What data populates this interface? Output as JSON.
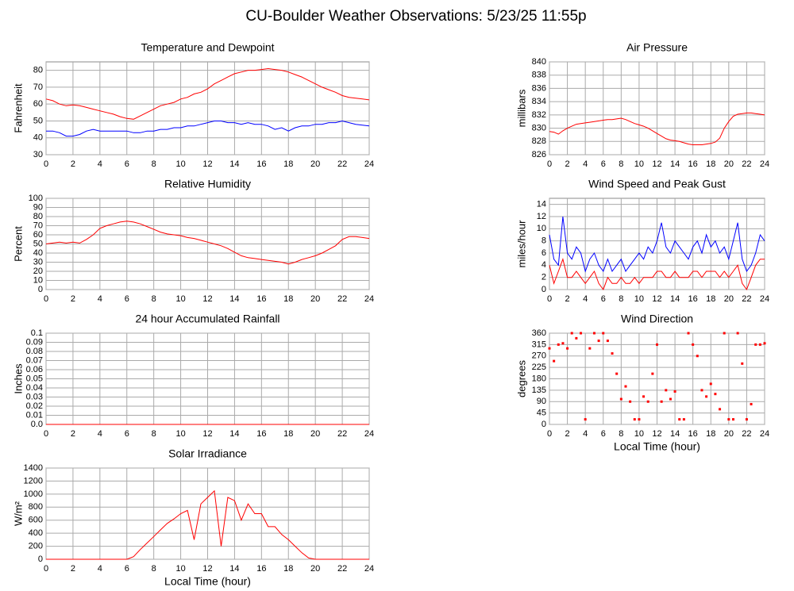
{
  "title": "CU-Boulder Weather Observations: 5/23/25 11:55p",
  "chart_data": [
    {
      "type": "line",
      "title": "Temperature and Dewpoint",
      "y_label": "Fahrenheit",
      "x": [
        0,
        0.5,
        1,
        1.5,
        2,
        2.5,
        3,
        3.5,
        4,
        4.5,
        5,
        5.5,
        6,
        6.5,
        7,
        7.5,
        8,
        8.5,
        9,
        9.5,
        10,
        10.5,
        11,
        11.5,
        12,
        12.5,
        13,
        13.5,
        14,
        14.5,
        15,
        15.5,
        16,
        16.5,
        17,
        17.5,
        18,
        18.5,
        19,
        19.5,
        20,
        20.5,
        21,
        21.5,
        22,
        22.5,
        23,
        23.5,
        24
      ],
      "series": [
        {
          "color": "#ff0000",
          "values": [
            63,
            62,
            60,
            59,
            59.5,
            59,
            58,
            57,
            56,
            55,
            54,
            52.5,
            51.5,
            51,
            53,
            55,
            57,
            59,
            60,
            61,
            63,
            64,
            66,
            67,
            69,
            72,
            74,
            76,
            78,
            79,
            80,
            80,
            80.5,
            81,
            80.5,
            80,
            79,
            77.5,
            76,
            74,
            72,
            70,
            68.5,
            67,
            65,
            64,
            63.5,
            63,
            62.5
          ]
        },
        {
          "color": "#0000ff",
          "values": [
            44,
            44,
            43,
            41,
            41,
            42,
            44,
            45,
            44,
            44,
            44,
            44,
            44,
            43,
            43,
            44,
            44,
            45,
            45,
            46,
            46,
            47,
            47,
            48,
            49,
            50,
            50,
            49,
            49,
            48,
            49,
            48,
            48,
            47,
            45,
            46,
            44,
            46,
            47,
            47,
            48,
            48,
            49,
            49,
            50,
            49,
            48,
            47.5,
            47
          ]
        }
      ],
      "xlim": [
        0,
        24
      ],
      "xticks": [
        0,
        2,
        4,
        6,
        8,
        10,
        12,
        14,
        16,
        18,
        20,
        22,
        24
      ],
      "ylim": [
        30,
        85
      ],
      "yticks": [
        30,
        40,
        50,
        60,
        70,
        80
      ],
      "grid": true
    },
    {
      "type": "line",
      "title": "Air Pressure",
      "y_label": "millibars",
      "x": [
        0,
        0.5,
        1,
        1.5,
        2,
        2.5,
        3,
        3.5,
        4,
        4.5,
        5,
        5.5,
        6,
        6.5,
        7,
        7.5,
        8,
        8.5,
        9,
        9.5,
        10,
        10.5,
        11,
        11.5,
        12,
        12.5,
        13,
        13.5,
        14,
        14.5,
        15,
        15.5,
        16,
        16.5,
        17,
        17.5,
        18,
        18.5,
        19,
        19.5,
        20,
        20.5,
        21,
        21.5,
        22,
        22.5,
        23,
        23.5,
        24
      ],
      "series": [
        {
          "color": "#ff0000",
          "values": [
            829.5,
            829.4,
            829.1,
            829.6,
            830,
            830.3,
            830.6,
            830.7,
            830.8,
            830.9,
            831,
            831.1,
            831.2,
            831.3,
            831.3,
            831.4,
            831.5,
            831.3,
            831,
            830.7,
            830.5,
            830.3,
            830,
            829.6,
            829.2,
            828.8,
            828.4,
            828.2,
            828.1,
            828,
            827.8,
            827.6,
            827.5,
            827.5,
            827.5,
            827.6,
            827.7,
            827.9,
            828.5,
            830,
            831,
            831.8,
            832.1,
            832.2,
            832.3,
            832.3,
            832.2,
            832.1,
            832
          ]
        }
      ],
      "xlim": [
        0,
        24
      ],
      "xticks": [
        0,
        2,
        4,
        6,
        8,
        10,
        12,
        14,
        16,
        18,
        20,
        22,
        24
      ],
      "ylim": [
        826,
        840
      ],
      "yticks": [
        826,
        828,
        830,
        832,
        834,
        836,
        838,
        840
      ],
      "grid": true
    },
    {
      "type": "line",
      "title": "Relative Humidity",
      "y_label": "Percent",
      "x": [
        0,
        0.5,
        1,
        1.5,
        2,
        2.5,
        3,
        3.5,
        4,
        4.5,
        5,
        5.5,
        6,
        6.5,
        7,
        7.5,
        8,
        8.5,
        9,
        9.5,
        10,
        10.5,
        11,
        11.5,
        12,
        12.5,
        13,
        13.5,
        14,
        14.5,
        15,
        15.5,
        16,
        16.5,
        17,
        17.5,
        18,
        18.5,
        19,
        19.5,
        20,
        20.5,
        21,
        21.5,
        22,
        22.5,
        23,
        23.5,
        24
      ],
      "series": [
        {
          "color": "#ff0000",
          "values": [
            50,
            51,
            52,
            51,
            52,
            51,
            55,
            60,
            67,
            70,
            72,
            74,
            75,
            74,
            72,
            69,
            66,
            63,
            61,
            60,
            59,
            57,
            56,
            54,
            52,
            50,
            48,
            45,
            41,
            37,
            35,
            34,
            33,
            32,
            31,
            30,
            28,
            30,
            33,
            35,
            37,
            40,
            44,
            48,
            55,
            58,
            58,
            57,
            56
          ]
        }
      ],
      "xlim": [
        0,
        24
      ],
      "xticks": [
        0,
        2,
        4,
        6,
        8,
        10,
        12,
        14,
        16,
        18,
        20,
        22,
        24
      ],
      "ylim": [
        0,
        100
      ],
      "yticks": [
        0,
        10,
        20,
        30,
        40,
        50,
        60,
        70,
        80,
        90,
        100
      ],
      "grid": true
    },
    {
      "type": "line",
      "title": "Wind Speed and Peak Gust",
      "y_label": "miles/hour",
      "x": [
        0,
        0.5,
        1,
        1.5,
        2,
        2.5,
        3,
        3.5,
        4,
        4.5,
        5,
        5.5,
        6,
        6.5,
        7,
        7.5,
        8,
        8.5,
        9,
        9.5,
        10,
        10.5,
        11,
        11.5,
        12,
        12.5,
        13,
        13.5,
        14,
        14.5,
        15,
        15.5,
        16,
        16.5,
        17,
        17.5,
        18,
        18.5,
        19,
        19.5,
        20,
        20.5,
        21,
        21.5,
        22,
        22.5,
        23,
        23.5,
        24
      ],
      "series": [
        {
          "color": "#0000ff",
          "values": [
            9,
            5,
            4,
            12,
            6,
            5,
            7,
            6,
            3,
            5,
            6,
            4,
            3,
            5,
            3,
            4,
            5,
            3,
            4,
            5,
            6,
            5,
            7,
            6,
            8,
            11,
            7,
            6,
            8,
            7,
            6,
            5,
            7,
            8,
            6,
            9,
            7,
            8,
            6,
            7,
            5,
            8,
            11,
            5,
            3,
            4,
            6,
            9,
            8
          ]
        },
        {
          "color": "#ff0000",
          "values": [
            4,
            1,
            3,
            5,
            2,
            2,
            3,
            2,
            1,
            2,
            3,
            1,
            0,
            2,
            1,
            1,
            2,
            1,
            1,
            2,
            1,
            2,
            2,
            2,
            3,
            3,
            2,
            2,
            3,
            2,
            2,
            2,
            3,
            3,
            2,
            3,
            3,
            3,
            2,
            3,
            2,
            3,
            4,
            1,
            0,
            2,
            4,
            5,
            5
          ]
        }
      ],
      "xlim": [
        0,
        24
      ],
      "xticks": [
        0,
        2,
        4,
        6,
        8,
        10,
        12,
        14,
        16,
        18,
        20,
        22,
        24
      ],
      "ylim": [
        0,
        15
      ],
      "yticks": [
        0,
        2,
        4,
        6,
        8,
        10,
        12,
        14
      ],
      "grid": true
    },
    {
      "type": "line",
      "title": "24 hour Accumulated Rainfall",
      "y_label": "Inches",
      "x": [
        0,
        0.5,
        1,
        1.5,
        2,
        2.5,
        3,
        3.5,
        4,
        4.5,
        5,
        5.5,
        6,
        6.5,
        7,
        7.5,
        8,
        8.5,
        9,
        9.5,
        10,
        10.5,
        11,
        11.5,
        12,
        12.5,
        13,
        13.5,
        14,
        14.5,
        15,
        15.5,
        16,
        16.5,
        17,
        17.5,
        18,
        18.5,
        19,
        19.5,
        20,
        20.5,
        21,
        21.5,
        22,
        22.5,
        23,
        23.5,
        24
      ],
      "series": [
        {
          "color": "#ff0000",
          "values": [
            0,
            0,
            0,
            0,
            0,
            0,
            0,
            0,
            0,
            0,
            0,
            0,
            0,
            0,
            0,
            0,
            0,
            0,
            0,
            0,
            0,
            0,
            0,
            0,
            0,
            0,
            0,
            0,
            0,
            0,
            0,
            0,
            0,
            0,
            0,
            0,
            0,
            0,
            0,
            0,
            0,
            0,
            0,
            0,
            0,
            0,
            0,
            0,
            0
          ]
        }
      ],
      "xlim": [
        0,
        24
      ],
      "xticks": [
        0,
        2,
        4,
        6,
        8,
        10,
        12,
        14,
        16,
        18,
        20,
        22,
        24
      ],
      "ylim": [
        0,
        0.1
      ],
      "yticks": [
        {
          "value": 0,
          "label": "0.0"
        },
        0.01,
        0.02,
        0.03,
        0.04,
        0.05,
        0.06,
        0.07,
        0.08,
        0.09,
        0.1
      ],
      "grid": true
    },
    {
      "type": "scatter",
      "title": "Wind Direction",
      "y_label": "degrees",
      "x_label": "Local Time (hour)",
      "color": "#ff0000",
      "x": [
        0,
        0.5,
        1,
        1.5,
        2,
        2.5,
        3,
        3.5,
        4,
        4.5,
        5,
        5.5,
        6,
        6.5,
        7,
        7.5,
        8,
        8.5,
        9,
        9.5,
        10,
        10.5,
        11,
        11.5,
        12,
        12.5,
        13,
        13.5,
        14,
        14.5,
        15,
        15.5,
        16,
        16.5,
        17,
        17.5,
        18,
        18.5,
        19,
        19.5,
        20,
        20.5,
        21,
        21.5,
        22,
        22.5,
        23,
        23.5,
        24
      ],
      "values": [
        300,
        250,
        315,
        320,
        300,
        360,
        340,
        360,
        20,
        300,
        360,
        330,
        360,
        330,
        280,
        200,
        100,
        150,
        90,
        20,
        20,
        110,
        90,
        200,
        315,
        90,
        135,
        100,
        130,
        20,
        20,
        360,
        315,
        270,
        135,
        110,
        160,
        120,
        60,
        360,
        20,
        20,
        360,
        240,
        20,
        80,
        315,
        315,
        320
      ],
      "xlim": [
        0,
        24
      ],
      "xticks": [
        0,
        2,
        4,
        6,
        8,
        10,
        12,
        14,
        16,
        18,
        20,
        22,
        24
      ],
      "ylim": [
        0,
        360
      ],
      "yticks": [
        0,
        45,
        90,
        135,
        180,
        225,
        270,
        315,
        360
      ],
      "grid": true
    },
    {
      "type": "line",
      "title": "Solar Irradiance",
      "y_label": "W/m²",
      "x_label": "Local Time (hour)",
      "x": [
        0,
        0.5,
        1,
        1.5,
        2,
        2.5,
        3,
        3.5,
        4,
        4.5,
        5,
        5.5,
        6,
        6.5,
        7,
        7.5,
        8,
        8.5,
        9,
        9.5,
        10,
        10.5,
        11,
        11.5,
        12,
        12.5,
        13,
        13.5,
        14,
        14.5,
        15,
        15.5,
        16,
        16.5,
        17,
        17.5,
        18,
        18.5,
        19,
        19.5,
        20,
        20.5,
        21,
        21.5,
        22,
        22.5,
        23,
        23.5,
        24
      ],
      "series": [
        {
          "color": "#ff0000",
          "values": [
            0,
            0,
            0,
            0,
            0,
            0,
            0,
            0,
            0,
            0,
            0,
            0,
            0,
            40,
            150,
            250,
            350,
            450,
            550,
            620,
            700,
            750,
            300,
            850,
            950,
            1050,
            200,
            950,
            900,
            600,
            850,
            700,
            700,
            500,
            500,
            380,
            300,
            200,
            100,
            20,
            0,
            0,
            0,
            0,
            0,
            0,
            0,
            0,
            0
          ]
        }
      ],
      "xlim": [
        0,
        24
      ],
      "xticks": [
        0,
        2,
        4,
        6,
        8,
        10,
        12,
        14,
        16,
        18,
        20,
        22,
        24
      ],
      "ylim": [
        0,
        1400
      ],
      "yticks": [
        0,
        200,
        400,
        600,
        800,
        1000,
        1200,
        1400
      ],
      "grid": true
    }
  ]
}
